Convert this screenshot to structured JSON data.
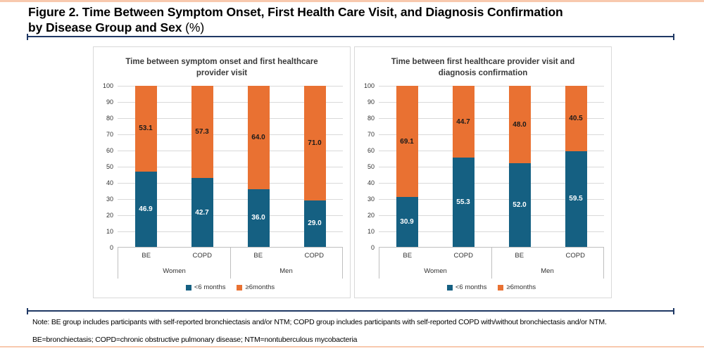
{
  "page": {
    "title_line1": "Figure 2. Time Between Symptom Onset, First Health Care Visit, and Diagnosis Confirmation",
    "title_line2": "by Disease Group and Sex",
    "title_suffix": "(%)"
  },
  "colors": {
    "blue": "#156082",
    "orange": "#E97132",
    "navy_divider": "#1F3864",
    "salmon_border": "#F8C9AE",
    "gridline": "#D9D9D9"
  },
  "chart_data": [
    {
      "type": "bar",
      "stacked": true,
      "title": "Time between symptom onset and first healthcare provider visit",
      "categories": [
        "BE",
        "COPD",
        "BE",
        "COPD"
      ],
      "group_labels": [
        "Women",
        "Men"
      ],
      "series": [
        {
          "name": "<6 months",
          "color": "#156082",
          "values": [
            46.9,
            42.7,
            36.0,
            29.0
          ]
        },
        {
          "name": "≥6months",
          "color": "#E97132",
          "values": [
            53.1,
            57.3,
            64.0,
            71.0
          ]
        }
      ],
      "ylim": [
        0,
        100
      ],
      "y_ticks": [
        100,
        90,
        80,
        70,
        60,
        50,
        40,
        30,
        20,
        10,
        0
      ],
      "grid": true,
      "legend_position": "bottom"
    },
    {
      "type": "bar",
      "stacked": true,
      "title": "Time between first healthcare provider visit and diagnosis confirmation",
      "categories": [
        "BE",
        "COPD",
        "BE",
        "COPD"
      ],
      "group_labels": [
        "Women",
        "Men"
      ],
      "series": [
        {
          "name": "<6 months",
          "color": "#156082",
          "values": [
            30.9,
            55.3,
            52.0,
            59.5
          ]
        },
        {
          "name": "≥6months",
          "color": "#E97132",
          "values": [
            69.1,
            44.7,
            48.0,
            40.5
          ]
        }
      ],
      "ylim": [
        0,
        100
      ],
      "y_ticks": [
        100,
        90,
        80,
        70,
        60,
        50,
        40,
        30,
        20,
        10,
        0
      ],
      "grid": true,
      "legend_position": "bottom"
    }
  ],
  "notes": {
    "note": "Note: BE group includes participants with self-reported bronchiectasis and/or NTM; COPD group includes participants with self-reported COPD with/without bronchiectasis and/or NTM.",
    "abbreviations": "BE=bronchiectasis; COPD=chronic obstructive pulmonary disease; NTM=nontuberculous mycobacteria"
  }
}
